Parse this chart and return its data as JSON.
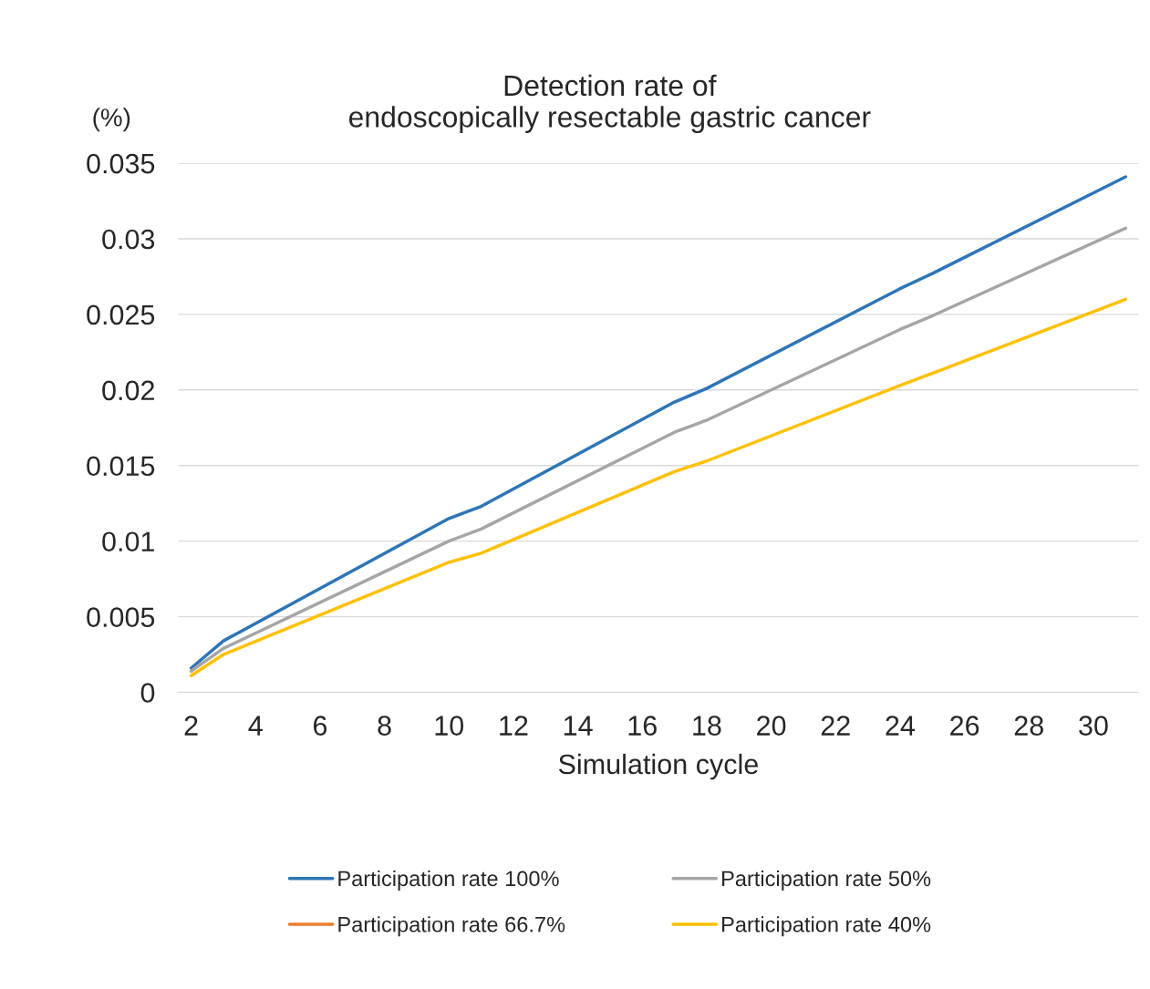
{
  "chart_data": {
    "type": "line",
    "title": "Detection rate of\nendoscopically resectable gastric cancer",
    "xlabel": "Simulation cycle",
    "ylabel": "(%)",
    "x": [
      2,
      3,
      10,
      11,
      17,
      18,
      24,
      25,
      31
    ],
    "series": [
      {
        "name": "Participation rate 100%",
        "color": "#2e75b6",
        "values": [
          0.0016,
          0.0034,
          0.0115,
          0.0123,
          0.0192,
          0.0201,
          0.0267,
          0.0277,
          0.0341
        ]
      },
      {
        "name": "Participation rate 66.7%",
        "color": "#ed7d31",
        "values": [
          null,
          null,
          null,
          null,
          null,
          null,
          null,
          null,
          null
        ]
      },
      {
        "name": "Participation rate 50%",
        "color": "#a5a5a5",
        "values": [
          0.0014,
          0.0029,
          0.01,
          0.0108,
          0.0172,
          0.018,
          0.024,
          0.0249,
          0.0307
        ]
      },
      {
        "name": "Participation rate 40%",
        "color": "#ffc000",
        "values": [
          0.0011,
          0.0025,
          0.0086,
          0.0092,
          0.0146,
          0.0153,
          0.0203,
          0.0211,
          0.026
        ]
      }
    ],
    "xlim": [
      1.6,
      31.4
    ],
    "xticks": [
      2,
      4,
      6,
      8,
      10,
      12,
      14,
      16,
      18,
      20,
      22,
      24,
      26,
      28,
      30
    ],
    "ylim": [
      0,
      0.035
    ],
    "yticks": [
      0,
      0.005,
      0.01,
      0.015,
      0.02,
      0.025,
      0.03,
      0.035
    ],
    "grid": "y",
    "legend": "bottom",
    "line_style": "solid",
    "marker": "none"
  }
}
